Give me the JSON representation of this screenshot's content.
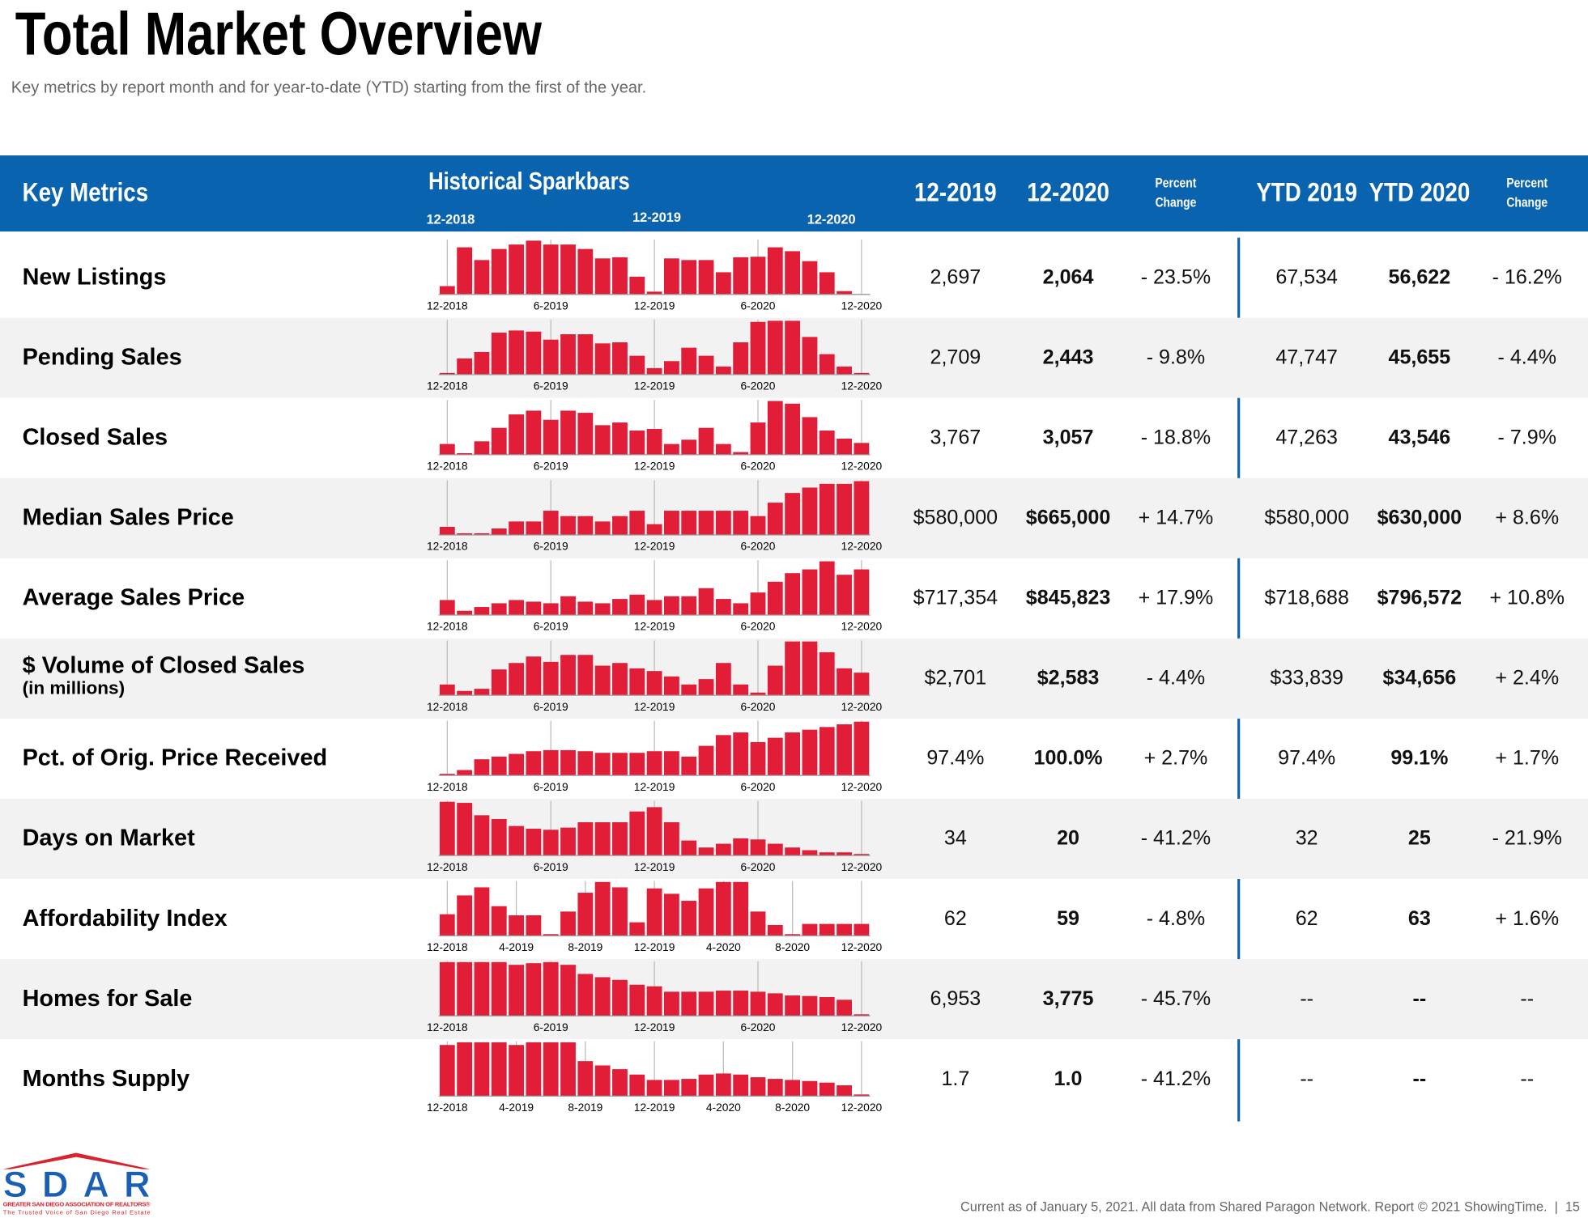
{
  "header": {
    "title": "Total Market Overview",
    "subtitle": "Key metrics by report month and for year-to-date (YTD) starting from the first of the year."
  },
  "table": {
    "columns": {
      "metric": "Key Metrics",
      "sparkbars": "Historical Sparkbars",
      "sparkbar_periods": [
        "12-2018",
        "12-2019",
        "12-2020"
      ],
      "values": [
        [
          "12-2019"
        ],
        [
          "12-2020"
        ],
        [
          "Percent",
          "Change"
        ],
        [
          "YTD 2019"
        ],
        [
          "YTD 2020"
        ],
        [
          "Percent",
          "Change"
        ]
      ]
    },
    "rows": [
      {
        "metric": "New Listings",
        "values": [
          "2,697",
          "2,064",
          "- 23.5%",
          "67,534",
          "56,622",
          "- 16.2%"
        ],
        "sparkbars": [
          15,
          85,
          62,
          82,
          90,
          97,
          90,
          90,
          82,
          65,
          67,
          32,
          5,
          65,
          62,
          62,
          40,
          67,
          68,
          85,
          78,
          60,
          40,
          6,
          0
        ],
        "sparkbar_labels": [
          "12-2018",
          null,
          null,
          null,
          null,
          null,
          "6-2019",
          null,
          null,
          null,
          null,
          null,
          "12-2019",
          null,
          null,
          null,
          null,
          null,
          "6-2020",
          null,
          null,
          null,
          null,
          null,
          "12-2020"
        ]
      },
      {
        "metric": "Pending Sales",
        "values": [
          "2,709",
          "2,443",
          "- 9.8%",
          "47,747",
          "45,655",
          "- 4.4%"
        ],
        "sparkbars": [
          3,
          30,
          42,
          78,
          82,
          80,
          65,
          75,
          75,
          58,
          60,
          35,
          12,
          25,
          50,
          35,
          15,
          60,
          98,
          100,
          100,
          70,
          38,
          15,
          3
        ],
        "sparkbar_labels": [
          "12-2018",
          null,
          null,
          null,
          null,
          null,
          "6-2019",
          null,
          null,
          null,
          null,
          null,
          "12-2019",
          null,
          null,
          null,
          null,
          null,
          "6-2020",
          null,
          null,
          null,
          null,
          null,
          "12-2020"
        ]
      },
      {
        "metric": "Closed Sales",
        "values": [
          "3,767",
          "3,057",
          "- 18.8%",
          "47,263",
          "43,546",
          "- 7.9%"
        ],
        "sparkbars": [
          20,
          3,
          25,
          50,
          75,
          82,
          65,
          82,
          78,
          55,
          60,
          45,
          48,
          20,
          28,
          50,
          20,
          5,
          60,
          100,
          95,
          70,
          45,
          30,
          22
        ],
        "sparkbar_labels": [
          "12-2018",
          null,
          null,
          null,
          null,
          null,
          "6-2019",
          null,
          null,
          null,
          null,
          null,
          "12-2019",
          null,
          null,
          null,
          null,
          null,
          "6-2020",
          null,
          null,
          null,
          null,
          null,
          "12-2020"
        ]
      },
      {
        "metric": "Median Sales Price",
        "values": [
          "$580,000",
          "$665,000",
          "+ 14.7%",
          "$580,000",
          "$630,000",
          "+ 8.6%"
        ],
        "sparkbars": [
          15,
          3,
          3,
          12,
          25,
          25,
          45,
          35,
          35,
          25,
          35,
          45,
          20,
          45,
          45,
          45,
          45,
          45,
          35,
          60,
          78,
          88,
          95,
          95,
          100
        ],
        "sparkbar_labels": [
          "12-2018",
          null,
          null,
          null,
          null,
          null,
          "6-2019",
          null,
          null,
          null,
          null,
          null,
          "12-2019",
          null,
          null,
          null,
          null,
          null,
          "6-2020",
          null,
          null,
          null,
          null,
          null,
          "12-2020"
        ]
      },
      {
        "metric": "Average Sales Price",
        "values": [
          "$717,354",
          "$845,823",
          "+ 17.9%",
          "$718,688",
          "$796,572",
          "+ 10.8%"
        ],
        "sparkbars": [
          28,
          8,
          15,
          22,
          28,
          25,
          22,
          35,
          25,
          22,
          30,
          38,
          28,
          35,
          35,
          50,
          30,
          22,
          42,
          62,
          78,
          85,
          100,
          75,
          85
        ],
        "sparkbar_labels": [
          "12-2018",
          null,
          null,
          null,
          null,
          null,
          "6-2019",
          null,
          null,
          null,
          null,
          null,
          "12-2019",
          null,
          null,
          null,
          null,
          null,
          "6-2020",
          null,
          null,
          null,
          null,
          null,
          "12-2020"
        ]
      },
      {
        "metric": "$ Volume of Closed Sales",
        "sub": "(in millions)",
        "values": [
          "$2,701",
          "$2,583",
          "- 4.4%",
          "$33,839",
          "$34,656",
          "+ 2.4%"
        ],
        "sparkbars": [
          20,
          8,
          12,
          48,
          60,
          72,
          62,
          75,
          75,
          55,
          60,
          50,
          45,
          35,
          20,
          30,
          60,
          20,
          5,
          55,
          100,
          100,
          80,
          50,
          42
        ],
        "sparkbar_labels": [
          "12-2018",
          null,
          null,
          null,
          null,
          null,
          "6-2019",
          null,
          null,
          null,
          null,
          null,
          "12-2019",
          null,
          null,
          null,
          null,
          null,
          "6-2020",
          null,
          null,
          null,
          null,
          null,
          "12-2020"
        ]
      },
      {
        "metric": "Pct. of Orig. Price Received",
        "values": [
          "97.4%",
          "100.0%",
          "+ 2.7%",
          "97.4%",
          "99.1%",
          "+ 1.7%"
        ],
        "sparkbars": [
          3,
          10,
          30,
          35,
          40,
          45,
          47,
          47,
          45,
          42,
          42,
          42,
          45,
          45,
          35,
          55,
          75,
          80,
          62,
          70,
          80,
          85,
          90,
          95,
          100
        ],
        "sparkbar_labels": [
          "12-2018",
          null,
          null,
          null,
          null,
          null,
          "6-2019",
          null,
          null,
          null,
          null,
          null,
          "12-2019",
          null,
          null,
          null,
          null,
          null,
          "6-2020",
          null,
          null,
          null,
          null,
          null,
          "12-2020"
        ]
      },
      {
        "metric": "Days on Market",
        "values": [
          "34",
          "20",
          "- 41.2%",
          "32",
          "25",
          "- 21.9%"
        ],
        "sparkbars": [
          100,
          98,
          75,
          68,
          55,
          50,
          48,
          52,
          62,
          62,
          62,
          82,
          90,
          62,
          28,
          15,
          22,
          32,
          30,
          22,
          15,
          10,
          6,
          6,
          3
        ],
        "sparkbar_labels": [
          "12-2018",
          null,
          null,
          null,
          null,
          null,
          "6-2019",
          null,
          null,
          null,
          null,
          null,
          "12-2019",
          null,
          null,
          null,
          null,
          null,
          "6-2020",
          null,
          null,
          null,
          null,
          null,
          "12-2020"
        ]
      },
      {
        "metric": "Affordability Index",
        "values": [
          "62",
          "59",
          "- 4.8%",
          "62",
          "63",
          "+ 1.6%"
        ],
        "sparkbars": [
          40,
          75,
          90,
          55,
          38,
          38,
          3,
          45,
          80,
          100,
          90,
          25,
          88,
          78,
          65,
          88,
          100,
          100,
          45,
          20,
          3,
          22,
          22,
          22,
          22
        ],
        "sparkbar_labels": [
          "12-2018",
          null,
          null,
          null,
          "4-2019",
          null,
          null,
          null,
          "8-2019",
          null,
          null,
          null,
          "12-2019",
          null,
          null,
          null,
          "4-2020",
          null,
          null,
          null,
          "8-2020",
          null,
          null,
          null,
          "12-2020"
        ]
      },
      {
        "metric": "Homes for Sale",
        "values": [
          "6,953",
          "3,775",
          "- 45.7%",
          "--",
          "--",
          "--"
        ],
        "sparkbars": [
          100,
          100,
          100,
          100,
          95,
          98,
          100,
          95,
          78,
          72,
          67,
          58,
          55,
          45,
          45,
          45,
          47,
          47,
          45,
          42,
          38,
          37,
          35,
          30,
          3
        ],
        "sparkbar_labels": [
          "12-2018",
          null,
          null,
          null,
          null,
          null,
          "6-2019",
          null,
          null,
          null,
          null,
          null,
          "12-2019",
          null,
          null,
          null,
          null,
          null,
          "6-2020",
          null,
          null,
          null,
          null,
          null,
          "12-2020"
        ]
      },
      {
        "metric": "Months Supply",
        "values": [
          "1.7",
          "1.0",
          "- 41.2%",
          "--",
          "--",
          "--"
        ],
        "sparkbars": [
          95,
          100,
          100,
          100,
          95,
          100,
          100,
          100,
          65,
          57,
          50,
          40,
          30,
          30,
          32,
          40,
          42,
          40,
          35,
          32,
          30,
          28,
          25,
          20,
          3
        ],
        "sparkbar_labels": [
          "12-2018",
          null,
          null,
          null,
          "4-2019",
          null,
          null,
          null,
          "8-2019",
          null,
          null,
          null,
          "12-2019",
          null,
          null,
          null,
          "4-2020",
          null,
          null,
          null,
          "8-2020",
          null,
          null,
          null,
          "12-2020"
        ]
      }
    ]
  },
  "footer": {
    "note": "Current as of January 5, 2021. All data from Shared Paragon Network. Report © 2021 ShowingTime.  |  15",
    "logo": {
      "name": "SDAR",
      "line1": "GREATER SAN DIEGO ASSOCIATION OF REALTORS®",
      "line2": "The Trusted Voice of San Diego Real Estate"
    }
  }
}
